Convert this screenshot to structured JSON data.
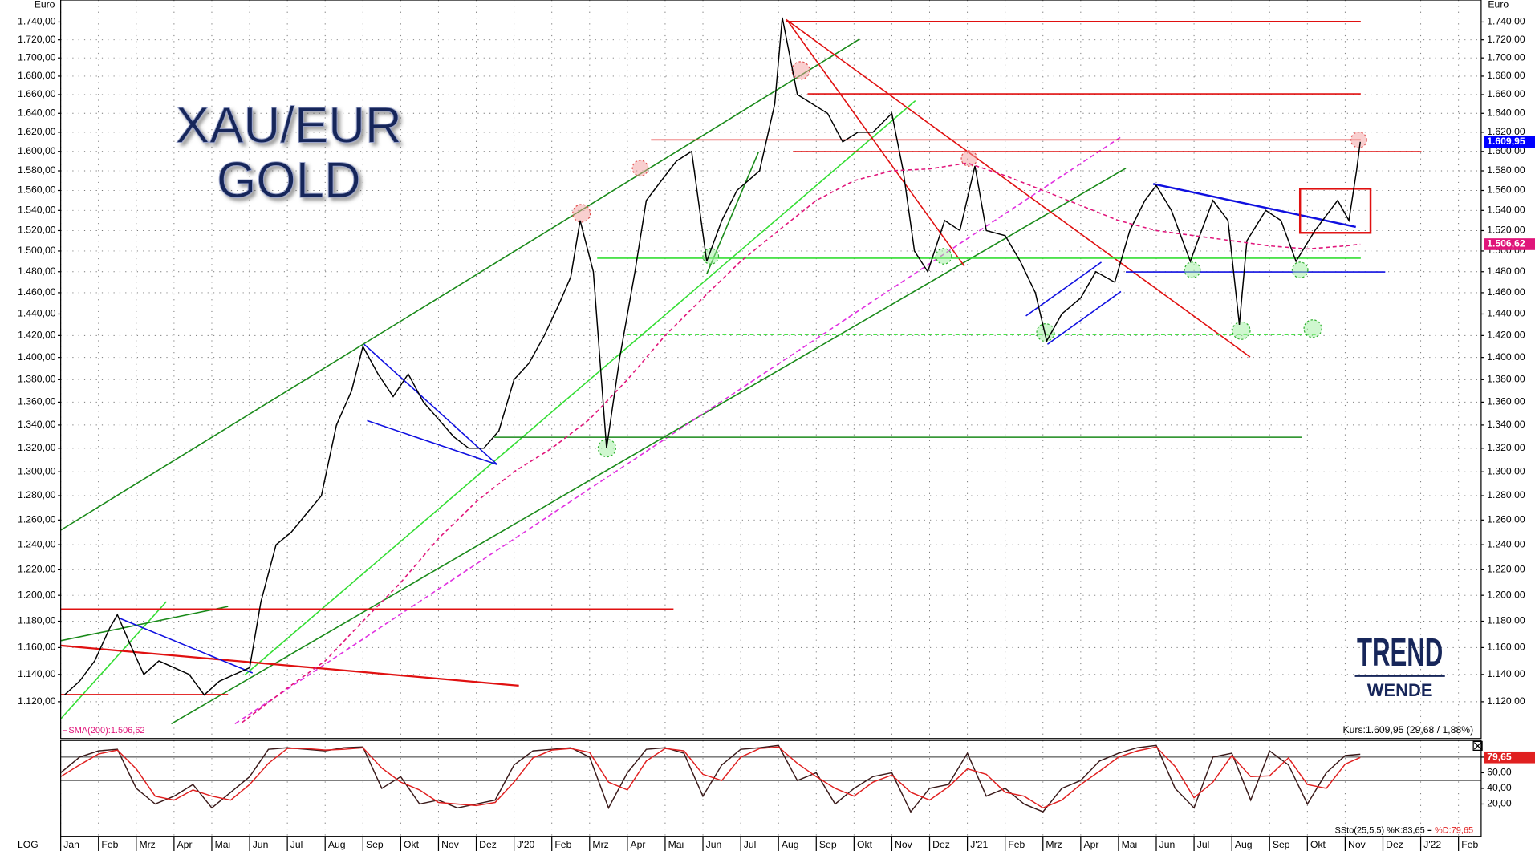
{
  "chart_data": [
    {
      "type": "line",
      "title": "XAU/EUR",
      "subtitle": "GOLD",
      "y_axis_label": "Euro",
      "scale_label": "LOG",
      "log_scale": true,
      "grid": true,
      "annotation": "Kurs:1.609,95 (29,68 / 1,88%)",
      "xlim": [
        0,
        37.6
      ],
      "xticks": [
        {
          "value": 0,
          "label": "Jan"
        },
        {
          "value": 1,
          "label": "Feb"
        },
        {
          "value": 2,
          "label": "Mrz"
        },
        {
          "value": 3,
          "label": "Apr"
        },
        {
          "value": 4,
          "label": "Mai"
        },
        {
          "value": 5,
          "label": "Jun"
        },
        {
          "value": 6,
          "label": "Jul"
        },
        {
          "value": 7,
          "label": "Aug"
        },
        {
          "value": 8,
          "label": "Sep"
        },
        {
          "value": 9,
          "label": "Okt"
        },
        {
          "value": 10,
          "label": "Nov"
        },
        {
          "value": 11,
          "label": "Dez"
        },
        {
          "value": 12,
          "label": "J'20"
        },
        {
          "value": 13,
          "label": "Feb"
        },
        {
          "value": 14,
          "label": "Mrz"
        },
        {
          "value": 15,
          "label": "Apr"
        },
        {
          "value": 16,
          "label": "Mai"
        },
        {
          "value": 17,
          "label": "Jun"
        },
        {
          "value": 18,
          "label": "Jul"
        },
        {
          "value": 19,
          "label": "Aug"
        },
        {
          "value": 20,
          "label": "Sep"
        },
        {
          "value": 21,
          "label": "Okt"
        },
        {
          "value": 22,
          "label": "Nov"
        },
        {
          "value": 23,
          "label": "Dez"
        },
        {
          "value": 24,
          "label": "J'21"
        },
        {
          "value": 25,
          "label": "Feb"
        },
        {
          "value": 26,
          "label": "Mrz"
        },
        {
          "value": 27,
          "label": "Apr"
        },
        {
          "value": 28,
          "label": "Mai"
        },
        {
          "value": 29,
          "label": "Jun"
        },
        {
          "value": 30,
          "label": "Jul"
        },
        {
          "value": 31,
          "label": "Aug"
        },
        {
          "value": 32,
          "label": "Sep"
        },
        {
          "value": 33,
          "label": "Okt"
        },
        {
          "value": 34,
          "label": "Nov"
        },
        {
          "value": 35,
          "label": "Dez"
        },
        {
          "value": 36,
          "label": "J'22"
        },
        {
          "value": 37,
          "label": "Feb"
        }
      ],
      "ylim": [
        1095,
        1765
      ],
      "yticks": [
        {
          "value": 1120,
          "label": "1.120,00"
        },
        {
          "value": 1140,
          "label": "1.140,00"
        },
        {
          "value": 1160,
          "label": "1.160,00"
        },
        {
          "value": 1180,
          "label": "1.180,00"
        },
        {
          "value": 1200,
          "label": "1.200,00"
        },
        {
          "value": 1220,
          "label": "1.220,00"
        },
        {
          "value": 1240,
          "label": "1.240,00"
        },
        {
          "value": 1260,
          "label": "1.260,00"
        },
        {
          "value": 1280,
          "label": "1.280,00"
        },
        {
          "value": 1300,
          "label": "1.300,00"
        },
        {
          "value": 1320,
          "label": "1.320,00"
        },
        {
          "value": 1340,
          "label": "1.340,00"
        },
        {
          "value": 1360,
          "label": "1.360,00"
        },
        {
          "value": 1380,
          "label": "1.380,00"
        },
        {
          "value": 1400,
          "label": "1.400,00"
        },
        {
          "value": 1420,
          "label": "1.420,00"
        },
        {
          "value": 1440,
          "label": "1.440,00"
        },
        {
          "value": 1460,
          "label": "1.460,00"
        },
        {
          "value": 1480,
          "label": "1.480,00"
        },
        {
          "value": 1500,
          "label": "1.500,00"
        },
        {
          "value": 1520,
          "label": "1.520,00"
        },
        {
          "value": 1540,
          "label": "1.540,00"
        },
        {
          "value": 1560,
          "label": "1.560,00"
        },
        {
          "value": 1580,
          "label": "1.580,00"
        },
        {
          "value": 1600,
          "label": "1.600,00"
        },
        {
          "value": 1620,
          "label": "1.620,00"
        },
        {
          "value": 1640,
          "label": "1.640,00"
        },
        {
          "value": 1660,
          "label": "1.660,00"
        },
        {
          "value": 1680,
          "label": "1.680,00"
        },
        {
          "value": 1700,
          "label": "1.700,00"
        },
        {
          "value": 1720,
          "label": "1.720,00"
        },
        {
          "value": 1740,
          "label": "1.740,00"
        }
      ],
      "series": [
        {
          "color": "#000000",
          "last_label": "1.609,95",
          "label_color": "#0000ff",
          "x": [
            0.1,
            0.5,
            0.9,
            1.3,
            1.5,
            1.8,
            2.2,
            2.6,
            3.0,
            3.4,
            3.8,
            4.2,
            4.6,
            5.0,
            5.3,
            5.7,
            6.1,
            6.5,
            6.9,
            7.3,
            7.7,
            8.0,
            8.4,
            8.8,
            9.2,
            9.6,
            10.0,
            10.4,
            10.8,
            11.2,
            11.6,
            12.0,
            12.4,
            12.8,
            13.2,
            13.5,
            13.75,
            14.1,
            14.45,
            14.8,
            15.2,
            15.5,
            15.9,
            16.3,
            16.7,
            17.1,
            17.5,
            17.9,
            18.5,
            18.9,
            19.1,
            19.5,
            19.9,
            20.3,
            20.7,
            21.1,
            21.5,
            22.0,
            22.3,
            22.6,
            22.95,
            23.4,
            23.8,
            24.2,
            24.5,
            25.0,
            25.4,
            25.8,
            26.1,
            26.5,
            27.0,
            27.4,
            27.9,
            28.3,
            28.7,
            29.0,
            29.4,
            29.9,
            30.2,
            30.5,
            30.9,
            31.2,
            31.4,
            31.9,
            32.3,
            32.7,
            33.2,
            33.8,
            34.1,
            34.3,
            34.4
          ],
          "values": [
            1125,
            1135,
            1150,
            1175,
            1185,
            1165,
            1140,
            1150,
            1145,
            1140,
            1125,
            1135,
            1140,
            1145,
            1195,
            1240,
            1250,
            1265,
            1280,
            1340,
            1370,
            1410,
            1385,
            1365,
            1385,
            1360,
            1345,
            1330,
            1320,
            1320,
            1335,
            1380,
            1395,
            1420,
            1450,
            1475,
            1530,
            1480,
            1320,
            1400,
            1480,
            1550,
            1570,
            1590,
            1600,
            1490,
            1530,
            1560,
            1580,
            1650,
            1745,
            1660,
            1650,
            1640,
            1610,
            1620,
            1620,
            1640,
            1580,
            1500,
            1480,
            1530,
            1520,
            1585,
            1520,
            1515,
            1490,
            1460,
            1415,
            1440,
            1455,
            1480,
            1470,
            1520,
            1550,
            1565,
            1540,
            1490,
            1520,
            1550,
            1530,
            1430,
            1510,
            1540,
            1530,
            1490,
            1520,
            1550,
            1530,
            1580,
            1609.95
          ]
        },
        {
          "name": "SMA(200):1.506,62",
          "color": "#e0157a",
          "line_style": "dashed",
          "last_label": "1.506,62",
          "label_color": "#e0157a",
          "x": [
            4.8,
            6,
            7,
            8,
            9,
            10,
            11,
            12,
            13,
            14,
            15,
            16,
            17,
            18,
            19,
            20,
            21,
            22,
            23,
            24,
            25,
            26,
            27,
            28,
            29,
            30,
            31,
            32,
            33,
            34,
            34.4
          ],
          "values": [
            1105,
            1130,
            1150,
            1180,
            1210,
            1245,
            1275,
            1300,
            1320,
            1345,
            1380,
            1420,
            1455,
            1490,
            1520,
            1550,
            1570,
            1580,
            1582,
            1588,
            1575,
            1560,
            1545,
            1530,
            1520,
            1515,
            1510,
            1505,
            1502,
            1505,
            1506.62
          ]
        }
      ]
    },
    {
      "type": "line",
      "xlim": [
        0,
        37.6
      ],
      "ylim": [
        0,
        100
      ],
      "reference_lines": [
        20,
        50,
        80
      ],
      "yticks": [
        {
          "value": 20,
          "label": "20,00"
        },
        {
          "value": 40,
          "label": "40,00"
        },
        {
          "value": 60,
          "label": "60,00"
        },
        {
          "value": 80,
          "label": "80,00"
        }
      ],
      "series": [
        {
          "name": "SSto(25,5,5) %K:83,65",
          "color": "#3a1a1a",
          "x": [
            0,
            0.5,
            1,
            1.5,
            2,
            2.5,
            3,
            3.5,
            4,
            4.5,
            5,
            5.5,
            6,
            6.5,
            7,
            7.5,
            8,
            8.5,
            9,
            9.5,
            10,
            10.5,
            11,
            11.5,
            12,
            12.5,
            13,
            13.5,
            14,
            14.5,
            15,
            15.5,
            16,
            16.5,
            17,
            17.5,
            18,
            18.5,
            19,
            19.5,
            20,
            20.5,
            21,
            21.5,
            22,
            22.5,
            23,
            23.5,
            24,
            24.5,
            25,
            25.5,
            26,
            26.5,
            27,
            27.5,
            28,
            28.5,
            29,
            29.5,
            30,
            30.5,
            31,
            31.5,
            32,
            32.5,
            33,
            33.5,
            34,
            34.4
          ],
          "values": [
            60,
            80,
            88,
            90,
            40,
            20,
            30,
            45,
            15,
            35,
            55,
            90,
            92,
            90,
            88,
            92,
            93,
            40,
            55,
            20,
            25,
            15,
            20,
            25,
            70,
            88,
            90,
            92,
            80,
            15,
            60,
            90,
            92,
            85,
            30,
            70,
            90,
            92,
            95,
            50,
            60,
            20,
            40,
            55,
            60,
            10,
            40,
            45,
            85,
            30,
            40,
            20,
            10,
            40,
            50,
            75,
            85,
            92,
            95,
            40,
            15,
            80,
            85,
            25,
            88,
            70,
            20,
            60,
            82,
            83.65
          ]
        },
        {
          "name": "%D:79,65",
          "color": "#e02020",
          "last_label": "79,65",
          "label_color": "#e02020",
          "x": [
            0,
            0.5,
            1,
            1.5,
            2,
            2.5,
            3,
            3.5,
            4,
            4.5,
            5,
            5.5,
            6,
            6.5,
            7,
            7.5,
            8,
            8.5,
            9,
            9.5,
            10,
            10.5,
            11,
            11.5,
            12,
            12.5,
            13,
            13.5,
            14,
            14.5,
            15,
            15.5,
            16,
            16.5,
            17,
            17.5,
            18,
            18.5,
            19,
            19.5,
            20,
            20.5,
            21,
            21.5,
            22,
            22.5,
            23,
            23.5,
            24,
            24.5,
            25,
            25.5,
            26,
            26.5,
            27,
            27.5,
            28,
            28.5,
            29,
            29.5,
            30,
            30.5,
            31,
            31.5,
            32,
            32.5,
            33,
            33.5,
            34,
            34.4
          ],
          "values": [
            55,
            70,
            84,
            89,
            65,
            30,
            25,
            38,
            30,
            25,
            45,
            72,
            91,
            91,
            89,
            90,
            92,
            66,
            48,
            38,
            22,
            20,
            18,
            22,
            48,
            79,
            89,
            91,
            86,
            48,
            38,
            75,
            91,
            88,
            58,
            50,
            80,
            91,
            93,
            72,
            55,
            40,
            30,
            48,
            57,
            35,
            25,
            42,
            65,
            58,
            35,
            30,
            15,
            25,
            45,
            62,
            80,
            88,
            93,
            68,
            28,
            48,
            82,
            55,
            56,
            79,
            45,
            40,
            71,
            79.65
          ]
        }
      ]
    }
  ],
  "branding": {
    "line1": "TREND",
    "line2": "WENDE"
  }
}
